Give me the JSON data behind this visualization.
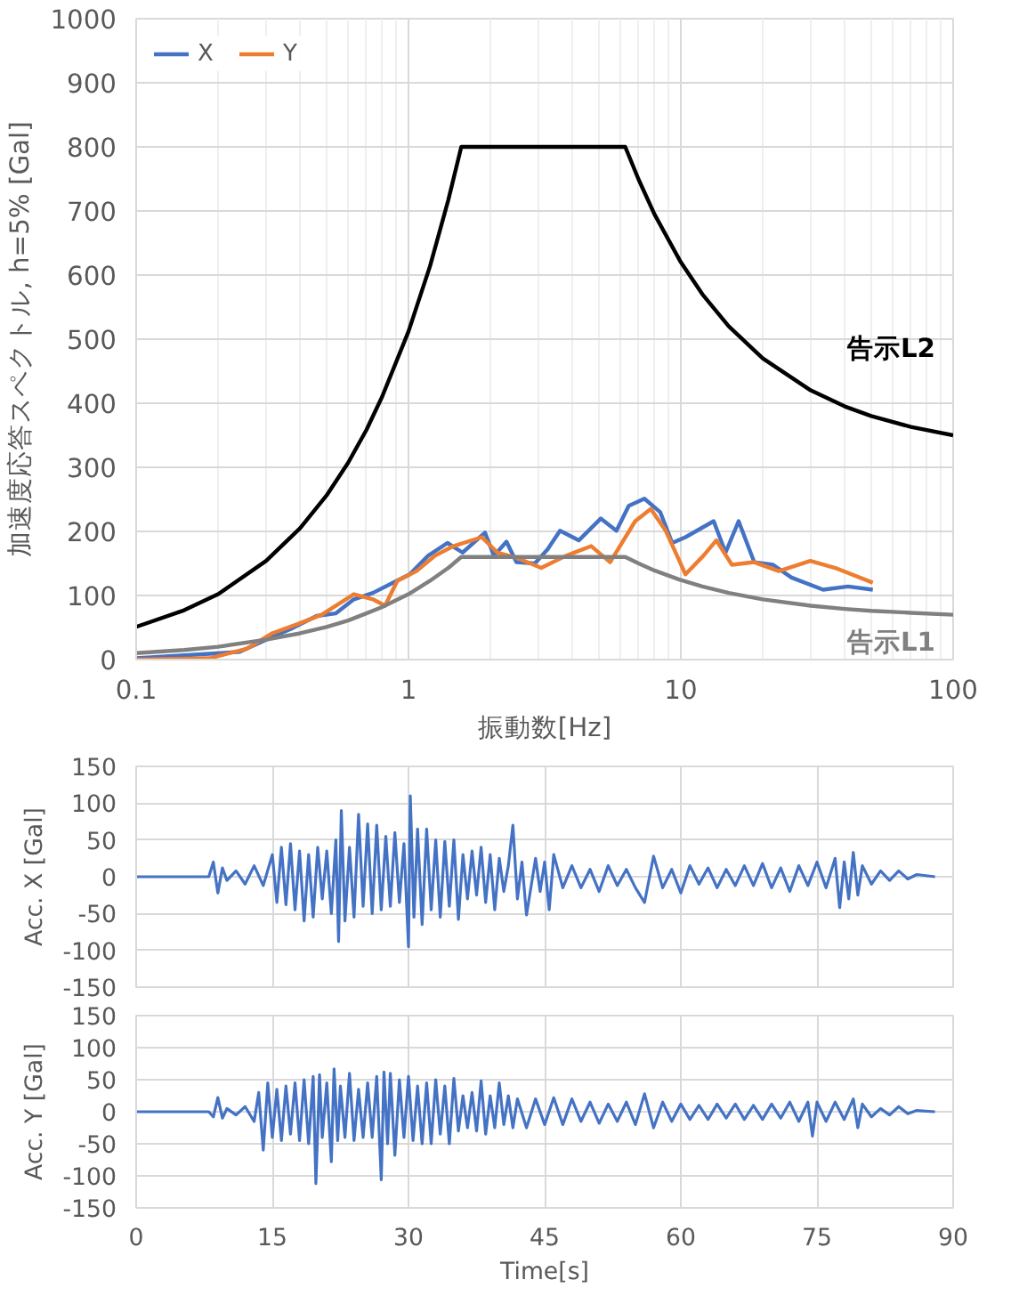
{
  "chart_data": [
    {
      "type": "line",
      "xlabel": "振動数[Hz]",
      "ylabel": "加速度応答スペクトル, h=5% [Gal]",
      "log": "x",
      "xlim": [
        0.1,
        100
      ],
      "xticks": [
        0.1,
        1,
        10,
        100
      ],
      "ylim": [
        0,
        1000
      ],
      "yticks": [
        0,
        100,
        200,
        300,
        400,
        500,
        600,
        700,
        800,
        900,
        1000
      ],
      "grid": true,
      "legend": "top left",
      "series": [
        {
          "name": "X",
          "color": "#4472c4",
          "x": [
            0.1,
            0.24,
            0.3,
            0.37,
            0.46,
            0.54,
            0.63,
            0.74,
            0.86,
            1.01,
            1.18,
            1.39,
            1.58,
            1.91,
            2.06,
            2.29,
            2.49,
            2.91,
            3.24,
            3.6,
            4.22,
            5.08,
            5.8,
            6.44,
            7.35,
            8.4,
            9.3,
            10.4,
            13.2,
            14.6,
            16.3,
            18.6,
            21.8,
            25.5,
            33.3,
            41.1,
            50.7
          ],
          "values": [
            2,
            12,
            31,
            48,
            68,
            72,
            94,
            104,
            118,
            133,
            162,
            182,
            167,
            198,
            162,
            184,
            152,
            150,
            172,
            201,
            186,
            220,
            201,
            240,
            251,
            230,
            182,
            191,
            216,
            167,
            216,
            152,
            148,
            128,
            109,
            114,
            109
          ]
        },
        {
          "name": "Y",
          "color": "#ed7d31",
          "x": [
            0.1,
            0.186,
            0.255,
            0.316,
            0.39,
            0.48,
            0.63,
            0.74,
            0.82,
            0.91,
            1.07,
            1.25,
            1.46,
            1.86,
            2.12,
            2.49,
            3.07,
            3.79,
            4.69,
            5.5,
            6.8,
            7.76,
            8.8,
            10.4,
            12.1,
            13.5,
            15.4,
            18.6,
            22.9,
            29.9,
            36.9,
            50.7
          ],
          "values": [
            0,
            2,
            17,
            41,
            55,
            70,
            102,
            94,
            84,
            123,
            138,
            162,
            177,
            191,
            167,
            159,
            143,
            162,
            177,
            152,
            216,
            235,
            201,
            133,
            162,
            186,
            148,
            152,
            138,
            154,
            143,
            120
          ]
        },
        {
          "color": "#000000",
          "x": [
            0.1,
            0.15,
            0.2,
            0.3,
            0.4,
            0.5,
            0.6,
            0.7,
            0.8,
            1,
            1.2,
            1.4,
            1.5625,
            6.25,
            7,
            8,
            10,
            12,
            15,
            20,
            30,
            40,
            50,
            70,
            100
          ],
          "values": [
            51,
            77,
            102,
            154,
            205,
            256,
            307,
            358,
            410,
            512,
            614,
            717,
            800,
            800,
            749,
            695,
            620,
            570,
            520,
            470,
            420,
            395,
            380,
            363,
            350
          ]
        },
        {
          "color": "#808080",
          "x": [
            0.1,
            0.15,
            0.2,
            0.3,
            0.4,
            0.5,
            0.6,
            0.7,
            0.8,
            1,
            1.2,
            1.4,
            1.5625,
            6.25,
            7,
            8,
            10,
            12,
            15,
            20,
            30,
            40,
            50,
            70,
            100
          ],
          "values": [
            10,
            15,
            20,
            31,
            41,
            51,
            61,
            72,
            82,
            102,
            123,
            143,
            160,
            160,
            150,
            139,
            124,
            114,
            104,
            94,
            84,
            79,
            76,
            73,
            70
          ]
        }
      ],
      "annotations": [
        "告示L2",
        "告示L1"
      ]
    },
    {
      "type": "line",
      "ylabel": "Acc. X [Gal]",
      "xlim": [
        0,
        90
      ],
      "xticks": [
        0,
        15,
        30,
        45,
        60,
        75,
        90
      ],
      "ylim": [
        -150,
        150
      ],
      "yticks": [
        -150,
        -100,
        -50,
        0,
        50,
        100,
        150
      ],
      "grid": true,
      "tick_labels": "y",
      "series": [
        {
          "color": "#4472c4",
          "x": [
            0,
            8,
            8.5,
            9,
            9.5,
            10,
            11,
            12,
            13,
            14,
            15,
            15.5,
            16,
            16.5,
            17,
            17.5,
            18,
            18.5,
            19,
            19.5,
            20,
            20.5,
            21,
            21.5,
            22,
            22.3,
            22.6,
            23,
            23.5,
            24,
            24.5,
            25,
            25.5,
            26,
            26.5,
            27,
            27.5,
            28,
            28.5,
            29,
            29.5,
            30,
            30.2,
            30.6,
            31,
            31.5,
            32,
            32.5,
            33,
            33.5,
            34,
            34.5,
            35,
            35.5,
            36,
            36.5,
            37,
            37.5,
            38,
            38.5,
            39,
            39.5,
            40,
            40.5,
            41,
            41.5,
            42,
            42.5,
            43,
            44,
            44.5,
            45,
            45.5,
            46,
            47,
            48,
            49,
            50,
            51,
            52,
            53,
            54,
            55,
            56,
            57,
            58,
            59,
            60,
            61,
            62,
            63,
            64,
            65,
            66,
            67,
            68,
            69,
            70,
            71,
            72,
            73,
            74,
            75,
            76,
            77,
            77.5,
            78,
            78.5,
            79,
            79.5,
            80,
            81,
            82,
            83,
            84,
            85,
            86,
            88
          ],
          "values": [
            0,
            0,
            20,
            -22,
            12,
            -5,
            8,
            -10,
            15,
            -12,
            30,
            -35,
            40,
            -38,
            45,
            -45,
            35,
            -60,
            30,
            -55,
            40,
            -30,
            35,
            -50,
            50,
            -88,
            90,
            -60,
            40,
            -55,
            85,
            -40,
            72,
            -50,
            70,
            -45,
            55,
            -40,
            60,
            -35,
            45,
            -95,
            110,
            -55,
            65,
            -65,
            65,
            -45,
            50,
            -55,
            48,
            -40,
            50,
            -58,
            30,
            -30,
            35,
            -25,
            40,
            -35,
            30,
            -45,
            25,
            -20,
            15,
            70,
            -30,
            20,
            -52,
            25,
            -20,
            20,
            -45,
            30,
            -15,
            15,
            -15,
            10,
            -20,
            15,
            -12,
            10,
            -15,
            -35,
            28,
            -15,
            10,
            -22,
            15,
            -10,
            12,
            -15,
            10,
            -12,
            15,
            -12,
            18,
            -15,
            12,
            -20,
            15,
            -12,
            20,
            -15,
            25,
            -42,
            20,
            -30,
            33,
            -25,
            15,
            -10,
            8,
            -5,
            8,
            -3,
            3,
            0
          ]
        }
      ]
    },
    {
      "type": "line",
      "ylabel": "Acc. Y [Gal]",
      "xlabel": "Time[s]",
      "xlim": [
        0,
        90
      ],
      "xticks": [
        0,
        15,
        30,
        45,
        60,
        75,
        90
      ],
      "ylim": [
        -150,
        150
      ],
      "yticks": [
        -150,
        -100,
        -50,
        0,
        50,
        100,
        150
      ],
      "grid": true,
      "series": [
        {
          "color": "#4472c4",
          "x": [
            0,
            8,
            8.5,
            9,
            9.5,
            10,
            11,
            12,
            13,
            13.5,
            14,
            14.5,
            15,
            15.5,
            16,
            16.5,
            17,
            17.5,
            18,
            18.5,
            19,
            19.5,
            19.8,
            20.2,
            20.5,
            21,
            21.5,
            21.8,
            22.2,
            22.5,
            23,
            23.5,
            24,
            24.5,
            25,
            25.5,
            26,
            26.5,
            27,
            27.3,
            27.7,
            28,
            28.5,
            29,
            29.5,
            30,
            30.5,
            31,
            31.5,
            32,
            32.5,
            33,
            33.5,
            34,
            34.5,
            35,
            35.5,
            36,
            36.5,
            37,
            37.5,
            38,
            38.5,
            39,
            39.5,
            40,
            40.5,
            41,
            41.5,
            42,
            43,
            44,
            45,
            46,
            47,
            48,
            49,
            50,
            51,
            52,
            53,
            54,
            55,
            56,
            57,
            58,
            59,
            60,
            61,
            62,
            63,
            64,
            65,
            66,
            67,
            68,
            69,
            70,
            71,
            72,
            73,
            74,
            74.5,
            75,
            76,
            77,
            78,
            79,
            79.5,
            80,
            81,
            82,
            83,
            84,
            85,
            86,
            88
          ],
          "values": [
            0,
            0,
            -8,
            22,
            -10,
            5,
            -5,
            8,
            -15,
            30,
            -60,
            45,
            -40,
            35,
            -45,
            40,
            -35,
            45,
            -45,
            50,
            -50,
            55,
            -112,
            58,
            -40,
            45,
            -78,
            67,
            -45,
            40,
            -40,
            60,
            -45,
            35,
            -40,
            45,
            -40,
            55,
            -106,
            62,
            -50,
            60,
            -68,
            50,
            -40,
            55,
            -45,
            40,
            -50,
            45,
            -50,
            50,
            -35,
            40,
            -50,
            52,
            -30,
            25,
            -25,
            30,
            -30,
            48,
            -35,
            25,
            -25,
            45,
            -20,
            25,
            -25,
            20,
            -25,
            20,
            -20,
            22,
            -20,
            20,
            -15,
            15,
            -18,
            12,
            -15,
            15,
            -20,
            28,
            -25,
            15,
            -15,
            12,
            -12,
            10,
            -12,
            12,
            -10,
            12,
            -12,
            10,
            -12,
            12,
            -10,
            15,
            -15,
            15,
            -38,
            15,
            -15,
            15,
            -12,
            20,
            -25,
            12,
            -8,
            5,
            -5,
            8,
            -3,
            2,
            0
          ]
        }
      ]
    }
  ]
}
